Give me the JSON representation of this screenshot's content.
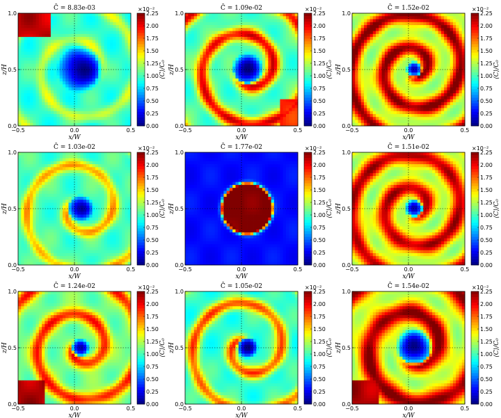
{
  "figure": {
    "xlabel": "x/W",
    "ylabel": "z/H",
    "colorbar_label": "⟨C⟩/C₀",
    "colorbar_multiplier": "×10⁻²",
    "xticks": [
      "−0.5",
      "0.0",
      "0.5"
    ],
    "yticks": [
      "0.0",
      "0.5",
      "1.0"
    ],
    "colorbar_ticks": [
      "0.00",
      "0.25",
      "0.50",
      "0.75",
      "1.00",
      "1.25",
      "1.50",
      "1.75",
      "2.00",
      "2.25"
    ],
    "colormap": "jet",
    "colors": {
      "jet_low": "#00007f",
      "jet_mid": "#7fff7f",
      "jet_high": "#7f0000",
      "crosshair": "#000000"
    }
  },
  "chart_data": [
    {
      "type": "heatmap",
      "title": "C̄ = 8.83e-03",
      "xlim": [
        -0.5,
        0.5
      ],
      "ylim": [
        0.0,
        1.0
      ],
      "clim": [
        0.0,
        0.0225
      ],
      "pattern": "large low-concentration vortex core, weak spiral arm",
      "core_value": 0.0003,
      "background_value": 0.0095,
      "arm_value": 0.013
    },
    {
      "type": "heatmap",
      "title": "C̄ = 1.09e-02",
      "xlim": [
        -0.5,
        0.5
      ],
      "ylim": [
        0.0,
        1.0
      ],
      "clim": [
        0.0,
        0.0225
      ],
      "pattern": "spiral arm with high concentration on left edge",
      "core_value": 0.0005,
      "background_value": 0.01,
      "arm_value": 0.02
    },
    {
      "type": "heatmap",
      "title": "C̄ = 1.52e-02",
      "xlim": [
        -0.5,
        0.5
      ],
      "ylim": [
        0.0,
        1.0
      ],
      "clim": [
        0.0,
        0.0225
      ],
      "pattern": "small core ringed by high concentration spiral",
      "core_value": 0.0008,
      "background_value": 0.012,
      "arm_value": 0.0225
    },
    {
      "type": "heatmap",
      "title": "C̄ = 1.03e-02",
      "xlim": [
        -0.5,
        0.5
      ],
      "ylim": [
        0.0,
        1.0
      ],
      "clim": [
        0.0,
        0.0225
      ],
      "pattern": "medium core, moderate spiral",
      "core_value": 0.0005,
      "background_value": 0.01,
      "arm_value": 0.016
    },
    {
      "type": "heatmap",
      "title": "C̄ = 1.77e-02",
      "xlim": [
        -0.5,
        0.5
      ],
      "ylim": [
        0.0,
        1.0
      ],
      "clim": [
        0.0,
        0.0225
      ],
      "pattern": "high-concentration disk in low background",
      "core_value": 0.0225,
      "background_value": 0.003,
      "arm_value": 0.003
    },
    {
      "type": "heatmap",
      "title": "C̄ = 1.51e-02",
      "xlim": [
        -0.5,
        0.5
      ],
      "ylim": [
        0.0,
        1.0
      ],
      "clim": [
        0.0,
        0.0225
      ],
      "pattern": "small core with strong spiral arm",
      "core_value": 0.0008,
      "background_value": 0.012,
      "arm_value": 0.0215
    },
    {
      "type": "heatmap",
      "title": "C̄ = 1.24e-02",
      "xlim": [
        -0.5,
        0.5
      ],
      "ylim": [
        0.0,
        1.0
      ],
      "clim": [
        0.0,
        0.0225
      ],
      "pattern": "small core, arm with corner high values",
      "core_value": 0.0005,
      "background_value": 0.011,
      "arm_value": 0.019
    },
    {
      "type": "heatmap",
      "title": "C̄ = 1.05e-02",
      "xlim": [
        -0.5,
        0.5
      ],
      "ylim": [
        0.0,
        1.0
      ],
      "clim": [
        0.0,
        0.0225
      ],
      "pattern": "small core, arm toward right edge",
      "core_value": 0.0005,
      "background_value": 0.0095,
      "arm_value": 0.018
    },
    {
      "type": "heatmap",
      "title": "C̄ = 1.54e-02",
      "xlim": [
        -0.5,
        0.5
      ],
      "ylim": [
        0.0,
        1.0
      ],
      "clim": [
        0.0,
        0.0225
      ],
      "pattern": "large core, thick high-concentration spiral",
      "core_value": 0.0003,
      "background_value": 0.012,
      "arm_value": 0.0225
    }
  ]
}
